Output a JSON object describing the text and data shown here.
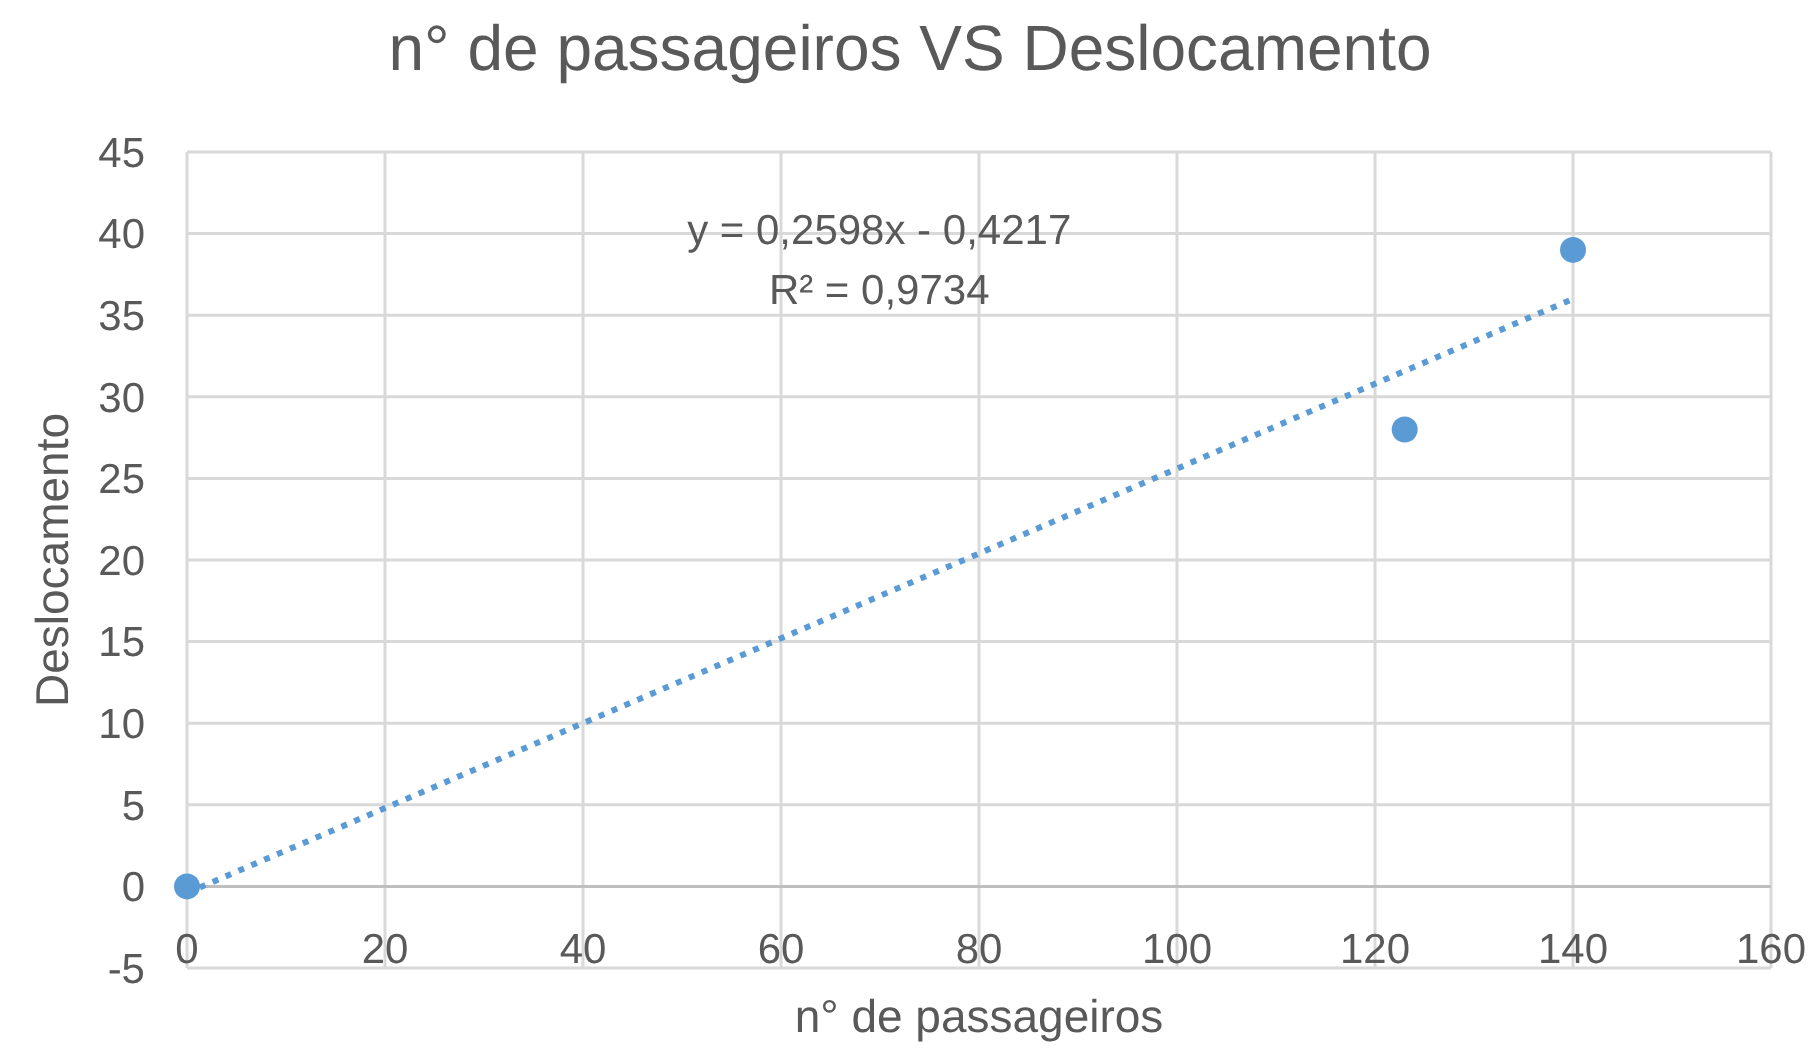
{
  "chart_data": {
    "type": "scatter",
    "title": "n° de passageiros VS Deslocamento",
    "xlabel": "n° de passageiros",
    "ylabel": "Deslocamento",
    "annotations": [
      "y = 0,2598x - 0,4217",
      "R² = 0,9734"
    ],
    "series": [
      {
        "color": "#5b9bd5",
        "x": [
          0,
          123,
          140
        ],
        "values": [
          0,
          28,
          39
        ]
      },
      {
        "type": "line",
        "color": "#5b9bd5",
        "x": [
          0,
          140
        ],
        "values": [
          -0.4,
          36
        ],
        "marker": "none",
        "line_style": "dotted"
      }
    ],
    "marker": "circle",
    "xlim": [
      0,
      160
    ],
    "ylim": [
      -5,
      45
    ],
    "xticks": [
      0,
      20,
      40,
      60,
      80,
      100,
      120,
      140,
      160
    ],
    "yticks": [
      -5,
      0,
      5,
      10,
      15,
      20,
      25,
      30,
      35,
      40,
      45
    ],
    "grid": true
  }
}
